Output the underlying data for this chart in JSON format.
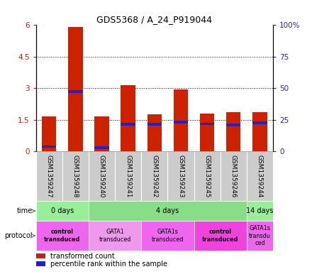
{
  "title": "GDS5368 / A_24_P919044",
  "samples": [
    "GSM1359247",
    "GSM1359248",
    "GSM1359240",
    "GSM1359241",
    "GSM1359242",
    "GSM1359243",
    "GSM1359245",
    "GSM1359246",
    "GSM1359244"
  ],
  "red_values": [
    1.65,
    5.9,
    1.65,
    3.15,
    1.75,
    2.95,
    1.8,
    1.85,
    1.85
  ],
  "blue_values": [
    0.22,
    2.85,
    0.18,
    1.28,
    1.28,
    1.38,
    1.3,
    1.25,
    1.35
  ],
  "ylim_left": [
    0,
    6
  ],
  "ylim_right": [
    0,
    100
  ],
  "yticks_left": [
    0,
    1.5,
    3.0,
    4.5,
    6.0
  ],
  "yticks_right": [
    0,
    25,
    50,
    75,
    100
  ],
  "ytick_labels_left": [
    "0",
    "1.5",
    "3",
    "4.5",
    "6"
  ],
  "ytick_labels_right": [
    "0",
    "25",
    "50",
    "75",
    "100%"
  ],
  "bar_color": "#cc2200",
  "blue_color": "#2222cc",
  "time_groups": [
    {
      "label": "0 days",
      "start": 0,
      "end": 2,
      "color": "#99ee99"
    },
    {
      "label": "4 days",
      "start": 2,
      "end": 8,
      "color": "#88dd88"
    },
    {
      "label": "14 days",
      "start": 8,
      "end": 9,
      "color": "#99ee99"
    }
  ],
  "protocol_groups": [
    {
      "label": "control\ntransduced",
      "start": 0,
      "end": 2,
      "color": "#ee66ee",
      "bold": true
    },
    {
      "label": "GATA1\ntransduced",
      "start": 2,
      "end": 4,
      "color": "#ee99ee",
      "bold": false
    },
    {
      "label": "GATA1s\ntransduced",
      "start": 4,
      "end": 6,
      "color": "#ee66ee",
      "bold": false
    },
    {
      "label": "control\ntransduced",
      "start": 6,
      "end": 8,
      "color": "#ee44dd",
      "bold": true
    },
    {
      "label": "GATA1s\ntransdu\nced",
      "start": 8,
      "end": 9,
      "color": "#ee66ee",
      "bold": false
    }
  ],
  "bg_color": "#ffffff",
  "label_color_red": "#cc2200",
  "label_color_blue": "#2222cc",
  "bar_width": 0.55,
  "sample_bg": "#cccccc"
}
